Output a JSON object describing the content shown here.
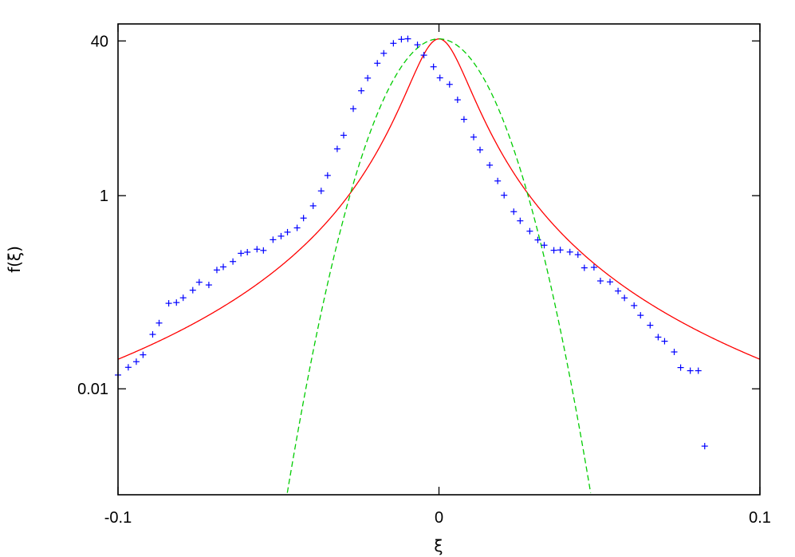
{
  "chart_data": {
    "type": "line",
    "title": "",
    "xlabel": "ξ",
    "ylabel": "f(ξ)",
    "xlim": [
      -0.1,
      0.1
    ],
    "ylim": [
      0.0008,
      60
    ],
    "y_scale": "log",
    "grid": false,
    "legend": "none",
    "x_ticks": [
      {
        "value": -0.1,
        "label": "-0.1"
      },
      {
        "value": 0,
        "label": "0"
      },
      {
        "value": 0.1,
        "label": "0.1"
      }
    ],
    "y_ticks": [
      {
        "value": 40,
        "label": "40"
      },
      {
        "value": 1,
        "label": "1"
      },
      {
        "value": 0.01,
        "label": "0.01"
      }
    ],
    "series": [
      {
        "style": "points",
        "marker": "+",
        "color": "#0000ff",
        "points": [
          [
            -0.1,
            0.0139
          ],
          [
            -0.0968,
            0.0167
          ],
          [
            -0.0943,
            0.0191
          ],
          [
            -0.0922,
            0.0225
          ],
          [
            -0.0892,
            0.0366
          ],
          [
            -0.0872,
            0.048
          ],
          [
            -0.0842,
            0.0768
          ],
          [
            -0.0818,
            0.0782
          ],
          [
            -0.0797,
            0.0876
          ],
          [
            -0.0767,
            0.105
          ],
          [
            -0.0747,
            0.127
          ],
          [
            -0.0717,
            0.119
          ],
          [
            -0.0692,
            0.17
          ],
          [
            -0.0672,
            0.183
          ],
          [
            -0.0642,
            0.208
          ],
          [
            -0.0617,
            0.253
          ],
          [
            -0.0597,
            0.26
          ],
          [
            -0.0567,
            0.279
          ],
          [
            -0.0547,
            0.271
          ],
          [
            -0.0517,
            0.35
          ],
          [
            -0.0492,
            0.381
          ],
          [
            -0.0472,
            0.419
          ],
          [
            -0.0442,
            0.464
          ],
          [
            -0.0422,
            0.586
          ],
          [
            -0.0392,
            0.785
          ],
          [
            -0.0367,
            1.12
          ],
          [
            -0.0347,
            1.62
          ],
          [
            -0.0317,
            3.05
          ],
          [
            -0.0297,
            4.22
          ],
          [
            -0.0267,
            7.94
          ],
          [
            -0.0242,
            12.2
          ],
          [
            -0.0222,
            16.5
          ],
          [
            -0.0192,
            23.5
          ],
          [
            -0.0172,
            29.8
          ],
          [
            -0.0142,
            37.8
          ],
          [
            -0.0117,
            41.6
          ],
          [
            -0.0097,
            42.1
          ],
          [
            -0.0067,
            36.5
          ],
          [
            -0.0047,
            28.5
          ],
          [
            -0.0017,
            21.6
          ],
          [
            0.0003,
            16.6
          ],
          [
            0.0033,
            14.2
          ],
          [
            0.0058,
            9.83
          ],
          [
            0.0078,
            6.17
          ],
          [
            0.0108,
            4.04
          ],
          [
            0.0128,
            2.98
          ],
          [
            0.0158,
            2.07
          ],
          [
            0.0183,
            1.42
          ],
          [
            0.0203,
            1.01
          ],
          [
            0.0233,
            0.683
          ],
          [
            0.0253,
            0.549
          ],
          [
            0.0283,
            0.429
          ],
          [
            0.0308,
            0.348
          ],
          [
            0.0328,
            0.307
          ],
          [
            0.0358,
            0.272
          ],
          [
            0.0378,
            0.274
          ],
          [
            0.0408,
            0.261
          ],
          [
            0.0433,
            0.245
          ],
          [
            0.0453,
            0.179
          ],
          [
            0.0483,
            0.181
          ],
          [
            0.0503,
            0.131
          ],
          [
            0.0533,
            0.128
          ],
          [
            0.0558,
            0.103
          ],
          [
            0.0578,
            0.0873
          ],
          [
            0.0608,
            0.0728
          ],
          [
            0.0628,
            0.0577
          ],
          [
            0.0658,
            0.0455
          ],
          [
            0.0683,
            0.0343
          ],
          [
            0.0703,
            0.0311
          ],
          [
            0.0733,
            0.0241
          ],
          [
            0.0753,
            0.0166
          ],
          [
            0.0783,
            0.0154
          ],
          [
            0.0808,
            0.0154
          ],
          [
            0.0828,
            0.00255
          ]
        ]
      },
      {
        "style": "solid",
        "color": "#ff0000"
      },
      {
        "style": "dashed",
        "color": "#00cc00"
      }
    ]
  }
}
